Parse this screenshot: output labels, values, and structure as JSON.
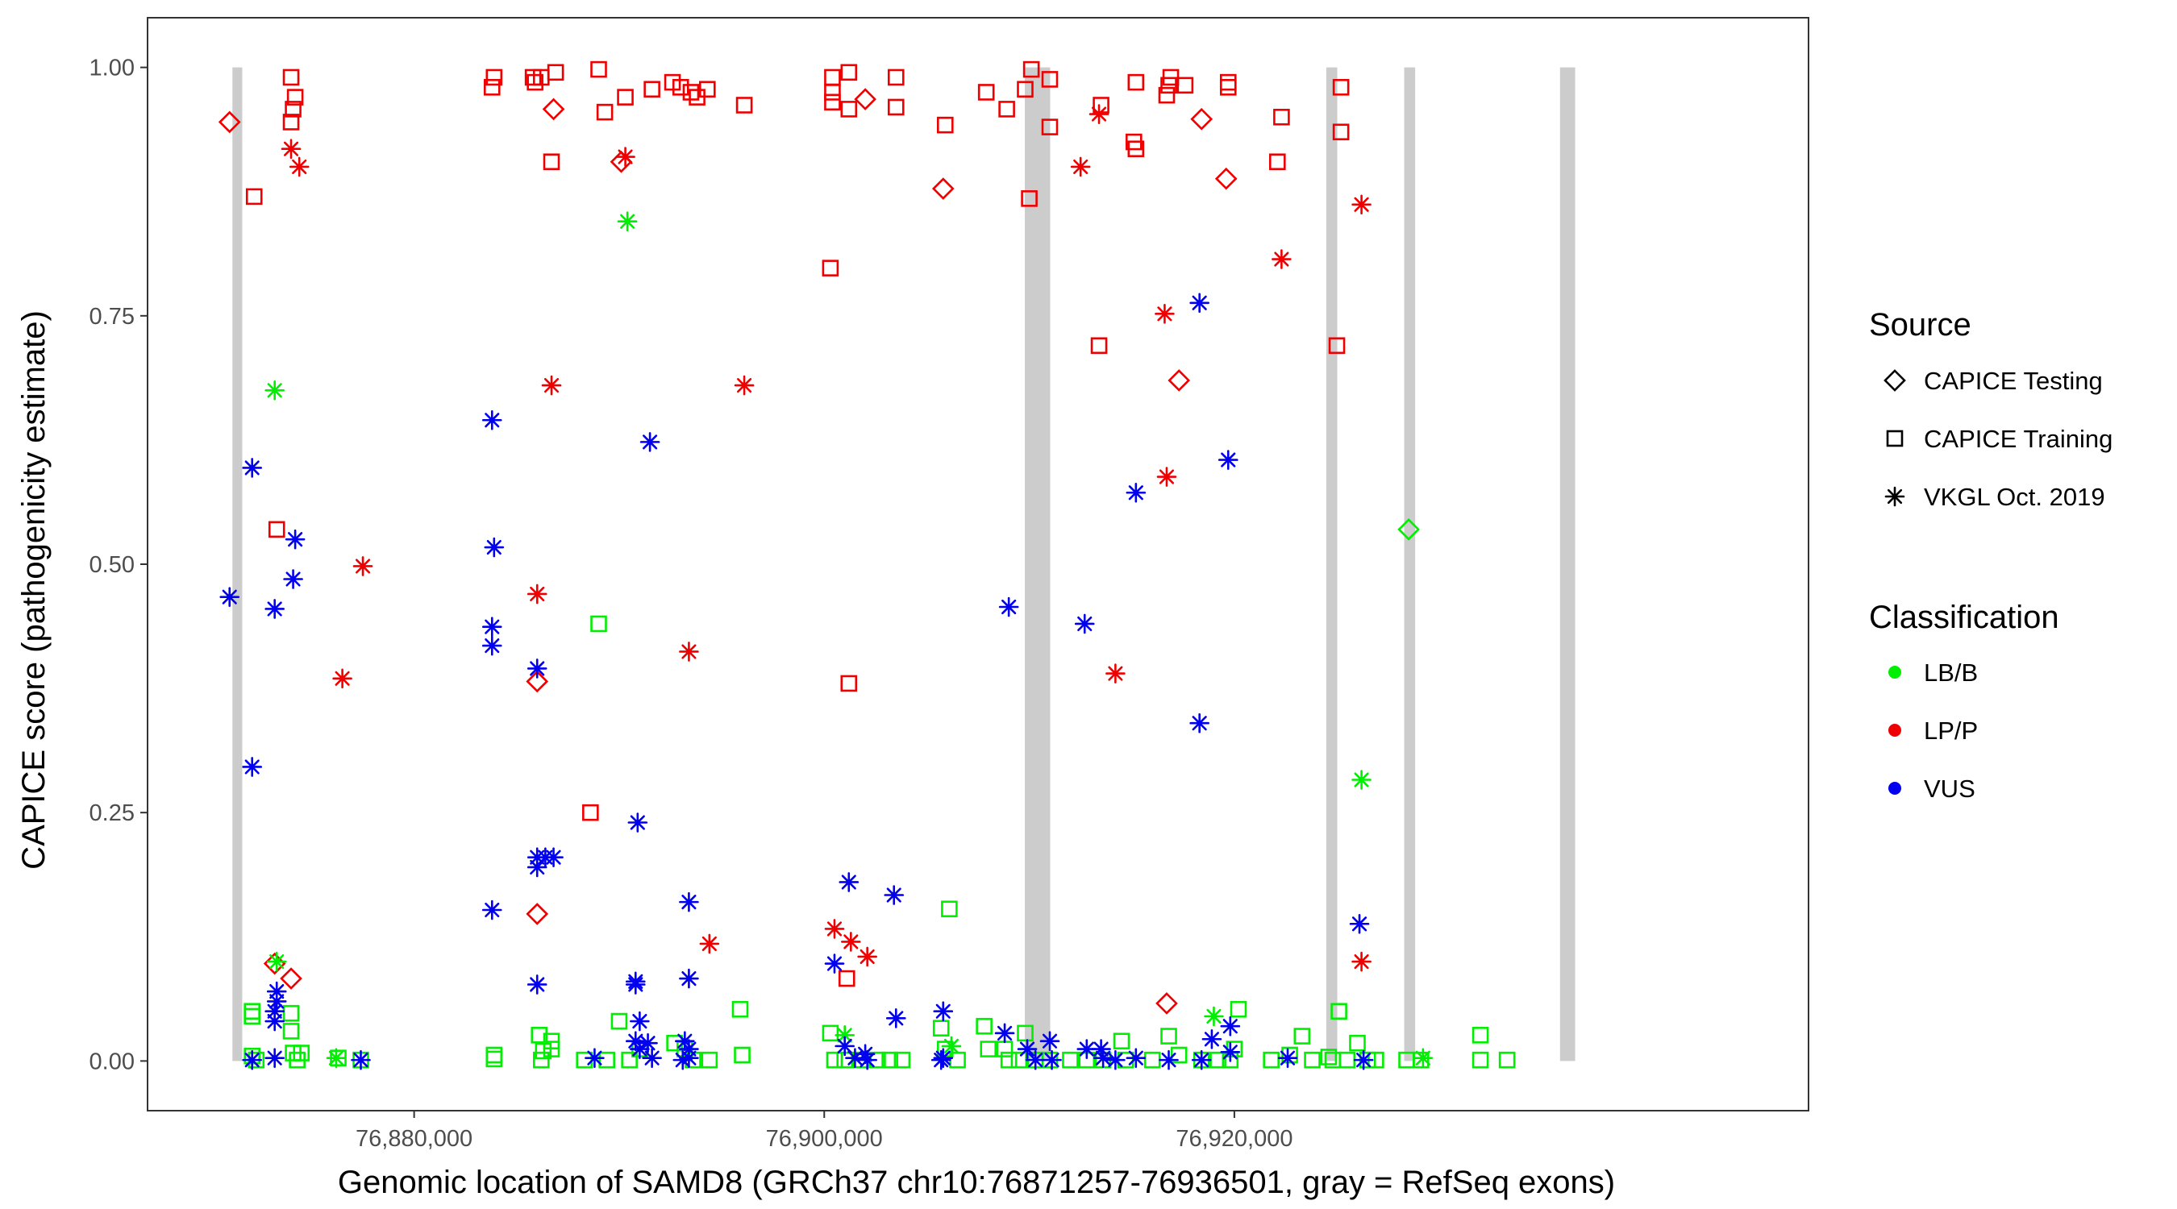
{
  "chart_data": {
    "type": "scatter",
    "xlabel": "Genomic location of SAMD8 (GRCh37 chr10:76871257-76936501, gray = RefSeq exons)",
    "ylabel": "CAPICE score (pathogenicity estimate)",
    "xlim": [
      76867000,
      76948000
    ],
    "ylim": [
      -0.05,
      1.05
    ],
    "x_ticks": [
      {
        "value": 76880000,
        "label": "76,880,000"
      },
      {
        "value": 76900000,
        "label": "76,900,000"
      },
      {
        "value": 76920000,
        "label": "76,920,000"
      }
    ],
    "y_ticks": [
      {
        "value": 0,
        "label": "0.00"
      },
      {
        "value": 0.25,
        "label": "0.25"
      },
      {
        "value": 0.5,
        "label": "0.50"
      },
      {
        "value": 0.75,
        "label": "0.75"
      },
      {
        "value": 1.0,
        "label": "1.00"
      }
    ],
    "grid": false,
    "legend_position": "right",
    "legend": {
      "source_title": "Source",
      "source_entries": [
        {
          "key": "testing",
          "label": "CAPICE Testing",
          "shape": "diamond"
        },
        {
          "key": "training",
          "label": "CAPICE Training",
          "shape": "square"
        },
        {
          "key": "vkgl",
          "label": "VKGL Oct. 2019",
          "shape": "asterisk"
        }
      ],
      "class_title": "Classification",
      "class_entries": [
        {
          "key": "LB/B",
          "label": "LB/B",
          "color": "#00ee00"
        },
        {
          "key": "LP/P",
          "label": "LP/P",
          "color": "#ee0000"
        },
        {
          "key": "VUS",
          "label": "VUS",
          "color": "#0000ee"
        }
      ]
    },
    "exons": [
      {
        "start": 76871257,
        "end": 76871500
      },
      {
        "start": 76909900,
        "end": 76910900
      },
      {
        "start": 76924600,
        "end": 76924900
      },
      {
        "start": 76928400,
        "end": 76928700
      },
      {
        "start": 76936000,
        "end": 76936501
      }
    ],
    "exon_color": "#cccccc",
    "series": [
      {
        "source": "training",
        "classification": "LP/P",
        "points": [
          [
            76872200,
            0.87
          ],
          [
            76873300,
            0.535
          ],
          [
            76874000,
            0.99
          ],
          [
            76874200,
            0.97
          ],
          [
            76874100,
            0.958
          ],
          [
            76874000,
            0.945
          ],
          [
            76883800,
            0.98
          ],
          [
            76883900,
            0.99
          ],
          [
            76885900,
            0.985
          ],
          [
            76885800,
            0.99
          ],
          [
            76886200,
            0.99
          ],
          [
            76886900,
            0.995
          ],
          [
            76886700,
            0.905
          ],
          [
            76888600,
            0.25
          ],
          [
            76889000,
            0.998
          ],
          [
            76889300,
            0.955
          ],
          [
            76890300,
            0.97
          ],
          [
            76891600,
            0.978
          ],
          [
            76892600,
            0.985
          ],
          [
            76893000,
            0.98
          ],
          [
            76893500,
            0.975
          ],
          [
            76893800,
            0.97
          ],
          [
            76894300,
            0.978
          ],
          [
            76896100,
            0.962
          ],
          [
            76900300,
            0.798
          ],
          [
            76900400,
            0.99
          ],
          [
            76900400,
            0.975
          ],
          [
            76900400,
            0.965
          ],
          [
            76901200,
            0.995
          ],
          [
            76901200,
            0.958
          ],
          [
            76901200,
            0.38
          ],
          [
            76901100,
            0.083
          ],
          [
            76903500,
            0.99
          ],
          [
            76903500,
            0.96
          ],
          [
            76905900,
            0.942
          ],
          [
            76907900,
            0.975
          ],
          [
            76908900,
            0.958
          ],
          [
            76909800,
            0.978
          ],
          [
            76910100,
            0.998
          ],
          [
            76910000,
            0.868
          ],
          [
            76911000,
            0.988
          ],
          [
            76911000,
            0.94
          ],
          [
            76913500,
            0.962
          ],
          [
            76913400,
            0.72
          ],
          [
            76915200,
            0.985
          ],
          [
            76915100,
            0.925
          ],
          [
            76915200,
            0.918
          ],
          [
            76916900,
            0.99
          ],
          [
            76916800,
            0.982
          ],
          [
            76916700,
            0.972
          ],
          [
            76917600,
            0.982
          ],
          [
            76919700,
            0.98
          ],
          [
            76919700,
            0.985
          ],
          [
            76922300,
            0.95
          ],
          [
            76922100,
            0.905
          ],
          [
            76925200,
            0.98
          ],
          [
            76925200,
            0.935
          ],
          [
            76925000,
            0.72
          ]
        ]
      },
      {
        "source": "testing",
        "classification": "LP/P",
        "points": [
          [
            76871000,
            0.945
          ],
          [
            76873200,
            0.098
          ],
          [
            76874000,
            0.083
          ],
          [
            76886000,
            0.382
          ],
          [
            76886000,
            0.148
          ],
          [
            76886800,
            0.958
          ],
          [
            76890100,
            0.905
          ],
          [
            76902000,
            0.968
          ],
          [
            76905800,
            0.878
          ],
          [
            76916700,
            0.058
          ],
          [
            76917300,
            0.685
          ],
          [
            76918400,
            0.948
          ],
          [
            76919600,
            0.888
          ]
        ]
      },
      {
        "source": "vkgl",
        "classification": "LP/P",
        "points": [
          [
            76874000,
            0.918
          ],
          [
            76874400,
            0.9
          ],
          [
            76876500,
            0.385
          ],
          [
            76877500,
            0.498
          ],
          [
            76886000,
            0.47
          ],
          [
            76886700,
            0.68
          ],
          [
            76890300,
            0.91
          ],
          [
            76893400,
            0.412
          ],
          [
            76894400,
            0.118
          ],
          [
            76896100,
            0.68
          ],
          [
            76900500,
            0.133
          ],
          [
            76901300,
            0.12
          ],
          [
            76902100,
            0.105
          ],
          [
            76912500,
            0.9
          ],
          [
            76913400,
            0.953
          ],
          [
            76914200,
            0.39
          ],
          [
            76916600,
            0.752
          ],
          [
            76916700,
            0.588
          ],
          [
            76922300,
            0.807
          ],
          [
            76926200,
            0.862
          ],
          [
            76926200,
            0.1
          ]
        ]
      },
      {
        "source": "training",
        "classification": "LB/B",
        "points": [
          [
            76872100,
            0.05
          ],
          [
            76872100,
            0.045
          ],
          [
            76872100,
            0.005
          ],
          [
            76872300,
            0.001
          ],
          [
            76874000,
            0.048
          ],
          [
            76874000,
            0.03
          ],
          [
            76874100,
            0.008
          ],
          [
            76874300,
            0.001
          ],
          [
            76874500,
            0.008
          ],
          [
            76876300,
            0.003
          ],
          [
            76877400,
            0.001
          ],
          [
            76883900,
            0.002
          ],
          [
            76883900,
            0.006
          ],
          [
            76886100,
            0.026
          ],
          [
            76886300,
            0.01
          ],
          [
            76886700,
            0.02
          ],
          [
            76886700,
            0.012
          ],
          [
            76886200,
            0.001
          ],
          [
            76888300,
            0.001
          ],
          [
            76889000,
            0.44
          ],
          [
            76889400,
            0.001
          ],
          [
            76890000,
            0.04
          ],
          [
            76890500,
            0.001
          ],
          [
            76891000,
            0.012
          ],
          [
            76892700,
            0.018
          ],
          [
            76893200,
            0.012
          ],
          [
            76893600,
            0.001
          ],
          [
            76894400,
            0.001
          ],
          [
            76895900,
            0.052
          ],
          [
            76896000,
            0.006
          ],
          [
            76900300,
            0.028
          ],
          [
            76900500,
            0.001
          ],
          [
            76901000,
            0.001
          ],
          [
            76901800,
            0.001
          ],
          [
            76902600,
            0.001
          ],
          [
            76903200,
            0.001
          ],
          [
            76903800,
            0.001
          ],
          [
            76905700,
            0.033
          ],
          [
            76905900,
            0.012
          ],
          [
            76906100,
            0.153
          ],
          [
            76906500,
            0.001
          ],
          [
            76907800,
            0.035
          ],
          [
            76908000,
            0.012
          ],
          [
            76908800,
            0.012
          ],
          [
            76909000,
            0.001
          ],
          [
            76909500,
            0.001
          ],
          [
            76909800,
            0.028
          ],
          [
            76910300,
            0.001
          ],
          [
            76911000,
            0.001
          ],
          [
            76912000,
            0.001
          ],
          [
            76912800,
            0.001
          ],
          [
            76913600,
            0.001
          ],
          [
            76914500,
            0.02
          ],
          [
            76914700,
            0.001
          ],
          [
            76916000,
            0.001
          ],
          [
            76916800,
            0.025
          ],
          [
            76917300,
            0.006
          ],
          [
            76918400,
            0.001
          ],
          [
            76919200,
            0.001
          ],
          [
            76919800,
            0.001
          ],
          [
            76920000,
            0.012
          ],
          [
            76920200,
            0.052
          ],
          [
            76921800,
            0.001
          ],
          [
            76922700,
            0.006
          ],
          [
            76923300,
            0.025
          ],
          [
            76923800,
            0.001
          ],
          [
            76924600,
            0.004
          ],
          [
            76924800,
            0.001
          ],
          [
            76925100,
            0.05
          ],
          [
            76925500,
            0.001
          ],
          [
            76926000,
            0.018
          ],
          [
            76926500,
            0.001
          ],
          [
            76926900,
            0.001
          ],
          [
            76928400,
            0.001
          ],
          [
            76929100,
            0.001
          ],
          [
            76932000,
            0.026
          ],
          [
            76932000,
            0.001
          ],
          [
            76933300,
            0.001
          ]
        ]
      },
      {
        "source": "testing",
        "classification": "LB/B",
        "points": [
          [
            76928500,
            0.535
          ]
        ]
      },
      {
        "source": "vkgl",
        "classification": "LB/B",
        "points": [
          [
            76890400,
            0.845
          ],
          [
            76873200,
            0.675
          ],
          [
            76873300,
            0.1
          ],
          [
            76876200,
            0.003
          ],
          [
            76901000,
            0.026
          ],
          [
            76906200,
            0.015
          ],
          [
            76919000,
            0.045
          ],
          [
            76926200,
            0.283
          ],
          [
            76929200,
            0.003
          ]
        ]
      },
      {
        "source": "vkgl",
        "classification": "VUS",
        "points": [
          [
            76871000,
            0.467
          ],
          [
            76872100,
            0.597
          ],
          [
            76872100,
            0.296
          ],
          [
            76872100,
            0.001
          ],
          [
            76873200,
            0.455
          ],
          [
            76873300,
            0.07
          ],
          [
            76873300,
            0.06
          ],
          [
            76873200,
            0.05
          ],
          [
            76873200,
            0.04
          ],
          [
            76873200,
            0.003
          ],
          [
            76874200,
            0.525
          ],
          [
            76874100,
            0.485
          ],
          [
            76877400,
            0.001
          ],
          [
            76883800,
            0.645
          ],
          [
            76883900,
            0.517
          ],
          [
            76883800,
            0.437
          ],
          [
            76883800,
            0.418
          ],
          [
            76883800,
            0.152
          ],
          [
            76886000,
            0.395
          ],
          [
            76886000,
            0.205
          ],
          [
            76886000,
            0.195
          ],
          [
            76886400,
            0.205
          ],
          [
            76886800,
            0.205
          ],
          [
            76886000,
            0.077
          ],
          [
            76888800,
            0.003
          ],
          [
            76890800,
            0.08
          ],
          [
            76890800,
            0.077
          ],
          [
            76891000,
            0.04
          ],
          [
            76890900,
            0.24
          ],
          [
            76891500,
            0.623
          ],
          [
            76890800,
            0.02
          ],
          [
            76891000,
            0.012
          ],
          [
            76891400,
            0.018
          ],
          [
            76891600,
            0.003
          ],
          [
            76893400,
            0.16
          ],
          [
            76893400,
            0.083
          ],
          [
            76893200,
            0.02
          ],
          [
            76893400,
            0.012
          ],
          [
            76893400,
            0.003
          ],
          [
            76893100,
            0.001
          ],
          [
            76900500,
            0.098
          ],
          [
            76901200,
            0.18
          ],
          [
            76901000,
            0.015
          ],
          [
            76901500,
            0.003
          ],
          [
            76902000,
            0.007
          ],
          [
            76902100,
            0.001
          ],
          [
            76903400,
            0.167
          ],
          [
            76903500,
            0.043
          ],
          [
            76905800,
            0.05
          ],
          [
            76905800,
            0.003
          ],
          [
            76905700,
            0.001
          ],
          [
            76908800,
            0.028
          ],
          [
            76909000,
            0.457
          ],
          [
            76909900,
            0.012
          ],
          [
            76910300,
            0.001
          ],
          [
            76911000,
            0.02
          ],
          [
            76911100,
            0.001
          ],
          [
            76912700,
            0.44
          ],
          [
            76912800,
            0.012
          ],
          [
            76913500,
            0.012
          ],
          [
            76913600,
            0.003
          ],
          [
            76914200,
            0.001
          ],
          [
            76915200,
            0.572
          ],
          [
            76915200,
            0.003
          ],
          [
            76916800,
            0.001
          ],
          [
            76918300,
            0.763
          ],
          [
            76918300,
            0.34
          ],
          [
            76918400,
            0.001
          ],
          [
            76918900,
            0.022
          ],
          [
            76919700,
            0.605
          ],
          [
            76919800,
            0.035
          ],
          [
            76919800,
            0.009
          ],
          [
            76922600,
            0.003
          ],
          [
            76926100,
            0.138
          ],
          [
            76926300,
            0.001
          ]
        ]
      }
    ]
  }
}
